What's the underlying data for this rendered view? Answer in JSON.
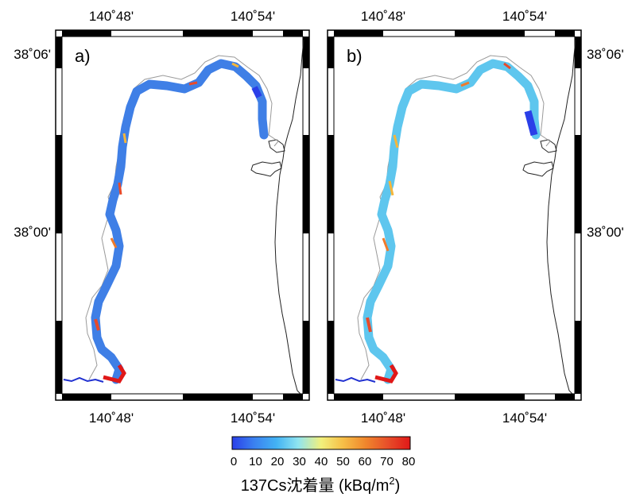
{
  "panels": [
    {
      "id": "a",
      "label": "a)",
      "top_lon": [
        "140˚48'",
        "140˚54'"
      ],
      "bottom_lon": [
        "140˚48'",
        "140˚54'"
      ],
      "lat": [
        "38˚06'",
        "38˚00'"
      ],
      "lat_side": "left"
    },
    {
      "id": "b",
      "label": "b)",
      "top_lon": [
        "140˚48'",
        "140˚54'"
      ],
      "bottom_lon": [
        "140˚48'",
        "140˚54'"
      ],
      "lat": [
        "38˚06'",
        "38˚00'"
      ],
      "lat_side": "right"
    }
  ],
  "colorbar": {
    "colors": [
      "#2a3fe8",
      "#3a8ff0",
      "#4cc0f3",
      "#9de9ee",
      "#f5f07a",
      "#f6b63a",
      "#f07a2a",
      "#e84a2a",
      "#e01818"
    ],
    "ticks": [
      "0",
      "10",
      "20",
      "30",
      "40",
      "50",
      "60",
      "70",
      "80"
    ],
    "title_main": "137Cs沈着量 (kBq/m",
    "title_sup": "2",
    "title_end": ")"
  },
  "colors": {
    "river_a": "#3f7fe6",
    "river_b": "#5ec6ee",
    "channel": "#2030d0",
    "coast": "#222222"
  }
}
